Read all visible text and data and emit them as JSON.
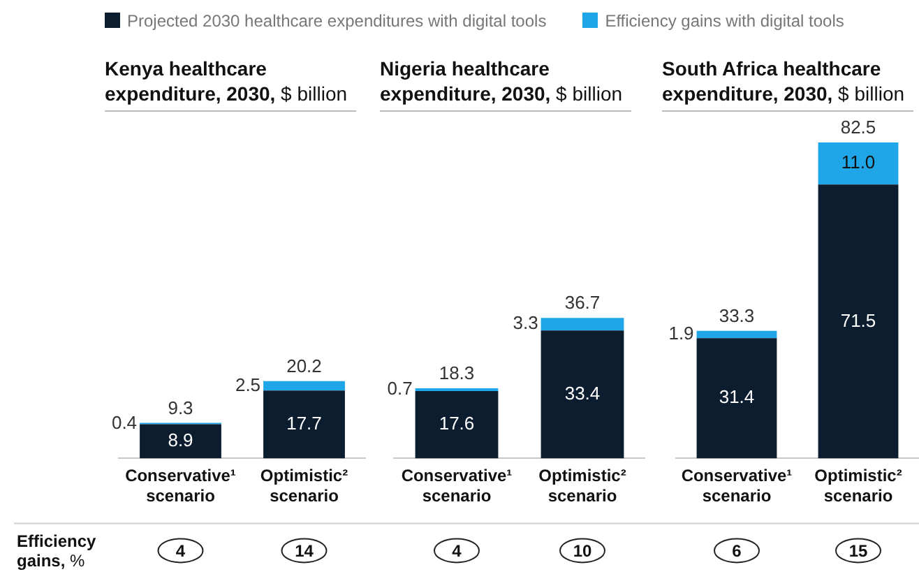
{
  "chart_data": [
    {
      "type": "bar",
      "title": "Kenya healthcare expenditure, 2030, $ billion",
      "categories": [
        "Conservative¹ scenario",
        "Optimistic² scenario"
      ],
      "stacked": true,
      "legend": "top",
      "series": [
        {
          "name": "Projected 2030 healthcare expenditures with digital tools",
          "color": "#0b1d2e",
          "values": [
            8.9,
            17.7
          ],
          "value_labels": [
            "8.9",
            "17.7"
          ]
        },
        {
          "name": "Efficiency gains with digital tools",
          "color": "#1fa6e8",
          "values": [
            0.4,
            2.5
          ],
          "value_labels": [
            "0.4",
            "2.5"
          ]
        }
      ],
      "totals": [
        "9.3",
        "20.2"
      ],
      "annotations": [
        "Efficiency gains, %",
        "4",
        "14"
      ]
    },
    {
      "type": "bar",
      "title": "Nigeria healthcare expenditure, 2030, $ billion",
      "categories": [
        "Conservative¹ scenario",
        "Optimistic² scenario"
      ],
      "stacked": true,
      "series": [
        {
          "color": "#0b1d2e",
          "values": [
            17.6,
            33.4
          ],
          "value_labels": [
            "17.6",
            "33.4"
          ]
        },
        {
          "color": "#1fa6e8",
          "values": [
            0.7,
            3.3
          ],
          "value_labels": [
            "0.7",
            "3.3"
          ]
        }
      ],
      "totals": [
        "18.3",
        "36.7"
      ],
      "annotations": [
        "4",
        "10"
      ]
    },
    {
      "type": "bar",
      "title": "South Africa healthcare expenditure, 2030, $ billion",
      "categories": [
        "Conservative¹ scenario",
        "Optimistic² scenario"
      ],
      "stacked": true,
      "series": [
        {
          "color": "#0b1d2e",
          "values": [
            31.4,
            71.5
          ],
          "value_labels": [
            "31.4",
            "71.5"
          ]
        },
        {
          "color": "#1fa6e8",
          "values": [
            1.9,
            11.0
          ],
          "value_labels": [
            "1.9",
            "11.0"
          ]
        }
      ],
      "totals": [
        "33.3",
        "82.5"
      ],
      "annotations": [
        "6",
        "15"
      ]
    }
  ]
}
